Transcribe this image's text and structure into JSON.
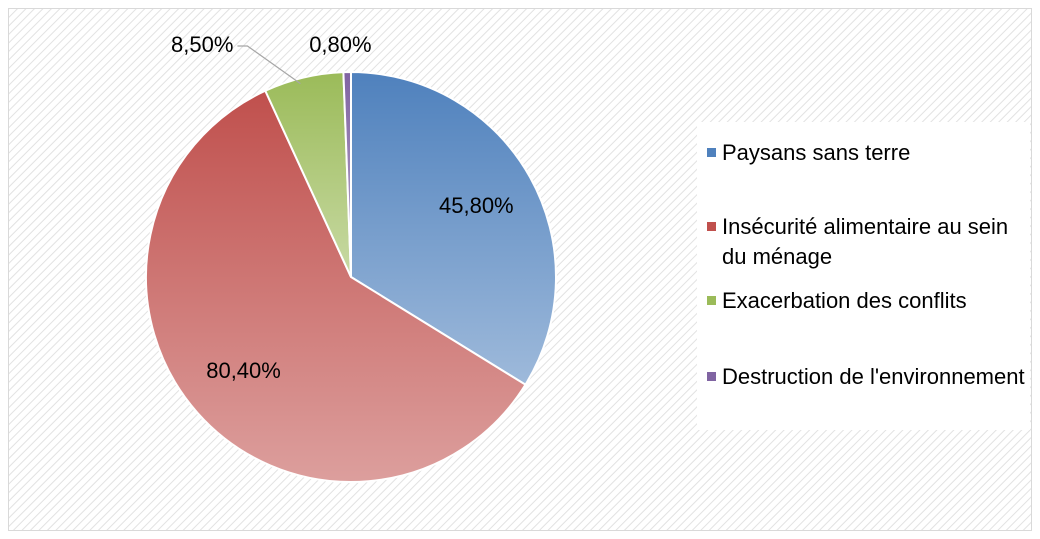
{
  "chart_data": {
    "type": "pie",
    "categories": [
      "Paysans sans terre",
      "Insécurité alimentaire au sein du ménage",
      "Exacerbation des conflits",
      "Destruction de l'environnement"
    ],
    "values": [
      45.8,
      80.4,
      8.5,
      0.8
    ],
    "value_labels": [
      "45,80%",
      "80,40%",
      "8,50%",
      "0,80%"
    ],
    "colors": [
      "#4f81bd",
      "#c0504d",
      "#9bbb59",
      "#8064a2"
    ],
    "legend": "right"
  }
}
